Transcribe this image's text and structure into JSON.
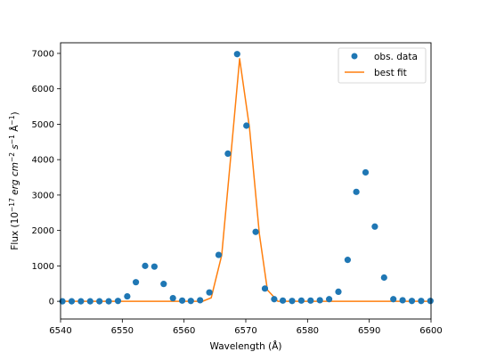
{
  "chart_data": {
    "type": "line",
    "xlabel": "Wavelength (Å)",
    "ylabel": "Flux (10^-17 erg cm^-2 s^-1 Å^-1)",
    "xlim": [
      6540,
      6600
    ],
    "ylim": [
      -500,
      7300
    ],
    "xticks": [
      6540,
      6550,
      6560,
      6570,
      6580,
      6590,
      6600
    ],
    "yticks": [
      0,
      1000,
      2000,
      3000,
      4000,
      5000,
      6000,
      7000
    ],
    "legend_position": "top-right",
    "series": [
      {
        "name": "obs. data",
        "kind": "scatter",
        "color": "#1f77b4",
        "x": [
          6540.3,
          6541.8,
          6543.3,
          6544.8,
          6546.3,
          6547.8,
          6549.3,
          6550.8,
          6552.2,
          6553.7,
          6555.2,
          6556.7,
          6558.2,
          6559.7,
          6561.1,
          6562.6,
          6564.1,
          6565.6,
          6567.1,
          6568.6,
          6570.1,
          6571.6,
          6573.1,
          6574.6,
          6576.0,
          6577.5,
          6579.0,
          6580.5,
          6582.0,
          6583.5,
          6585.0,
          6586.5,
          6587.9,
          6589.4,
          6590.9,
          6592.4,
          6593.9,
          6595.4,
          6596.9,
          6598.4,
          6599.9
        ],
        "values": [
          0,
          0,
          0,
          0,
          0,
          0,
          10,
          140,
          540,
          1000,
          980,
          490,
          90,
          20,
          10,
          30,
          250,
          1310,
          4170,
          6980,
          4960,
          1960,
          360,
          60,
          20,
          10,
          20,
          20,
          30,
          60,
          270,
          1170,
          3090,
          3640,
          2110,
          670,
          60,
          30,
          10,
          10,
          10
        ]
      },
      {
        "name": "best fit",
        "kind": "line",
        "color": "#ff7f0e",
        "x": [
          6540.3,
          6563.0,
          6564.4,
          6566.1,
          6567.6,
          6569.0,
          6570.6,
          6572.2,
          6573.5,
          6575.2,
          6599.9
        ],
        "values": [
          0,
          0,
          100,
          1300,
          4150,
          6850,
          4900,
          1900,
          320,
          0,
          0
        ]
      }
    ]
  }
}
